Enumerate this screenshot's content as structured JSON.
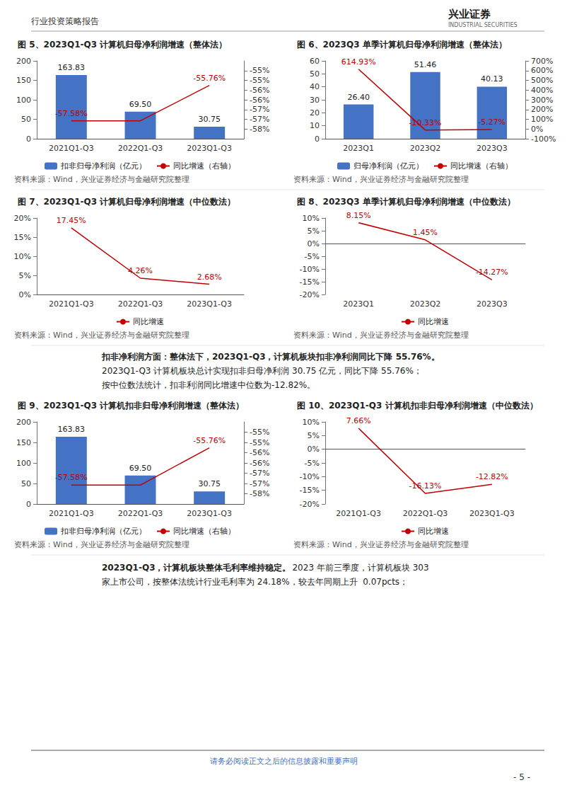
{
  "chart_data": [
    {
      "type": "bar",
      "title": "图 5、2023Q1-Q3 计算机归母净利润增速（整体法）",
      "categories": [
        "2021Q1-Q3",
        "2022Q1-Q3",
        "2023Q1-Q3"
      ],
      "series": [
        {
          "name": "扣非归母净利润（亿元）",
          "type": "bar",
          "color": "#4472C4",
          "values": [
            163.83,
            69.5,
            30.75
          ],
          "value_labels": [
            "163.83",
            "69.50",
            "30.75"
          ]
        },
        {
          "name": "同比增速（右轴）",
          "type": "line",
          "color": "#C00000",
          "axis": "y2",
          "values": [
            -57.58,
            -57.58,
            -55.76
          ],
          "value_labels": [
            "-57.58%",
            null,
            "-55.76%"
          ]
        }
      ],
      "ylim": [
        0,
        200
      ],
      "yticks": [
        0,
        50,
        100,
        150,
        200
      ],
      "y2lim": [
        -58.5,
        -54.5
      ],
      "y2ticks": [
        {
          "value": -58,
          "label": "-58%"
        },
        {
          "value": -57.5,
          "label": "-57%"
        },
        {
          "value": -57,
          "label": "-57%"
        },
        {
          "value": -56.5,
          "label": "-56%"
        },
        {
          "value": -56,
          "label": "-56%"
        },
        {
          "value": -55.5,
          "label": "-55%"
        },
        {
          "value": -55,
          "label": "-55%"
        }
      ],
      "data_labels": true,
      "grid": false,
      "legend": "bottom",
      "annotations": [
        "资料来源：Wind，兴业证券经济与金融研究院整理"
      ]
    },
    {
      "type": "bar",
      "title": "图 6、2023Q3 单季计算机归母净利润增速（整体法）",
      "categories": [
        "2023Q1",
        "2023Q2",
        "2023Q3"
      ],
      "series": [
        {
          "name": "归母净利润（亿元）",
          "type": "bar",
          "color": "#4472C4",
          "values": [
            26.4,
            51.46,
            40.13
          ],
          "value_labels": [
            "26.40",
            "51.46",
            "40.13"
          ]
        },
        {
          "name": "同比增速（右轴）",
          "type": "line",
          "color": "#C00000",
          "axis": "y2",
          "values": [
            614.93,
            -10.33,
            -5.27
          ],
          "value_labels": [
            "614.93%",
            "-10.33%",
            "-5.27%"
          ]
        }
      ],
      "ylim": [
        0,
        60
      ],
      "yticks": [
        0,
        10,
        20,
        30,
        40,
        50,
        60
      ],
      "y2lim": [
        -100,
        700
      ],
      "y2ticks": [
        {
          "value": -100,
          "label": "-100%"
        },
        {
          "value": 0,
          "label": "0%"
        },
        {
          "value": 100,
          "label": "100%"
        },
        {
          "value": 200,
          "label": "200%"
        },
        {
          "value": 300,
          "label": "300%"
        },
        {
          "value": 400,
          "label": "400%"
        },
        {
          "value": 500,
          "label": "500%"
        },
        {
          "value": 600,
          "label": "600%"
        },
        {
          "value": 700,
          "label": "700%"
        }
      ],
      "data_labels": true,
      "grid": false,
      "legend": "bottom",
      "annotations": [
        "资料来源：Wind，兴业证券经济与金融研究院整理"
      ]
    },
    {
      "type": "line",
      "title": "图 7、2023Q1-Q3 计算机归母净利润增速（中位数法）",
      "categories": [
        "2021Q1-Q3",
        "2022Q1-Q3",
        "2023Q1-Q3"
      ],
      "series": [
        {
          "name": "同比增速",
          "type": "line",
          "color": "#C00000",
          "values": [
            17.45,
            4.26,
            2.68
          ],
          "value_labels": [
            "17.45%",
            "4.26%",
            "2.68%"
          ]
        }
      ],
      "ylim": [
        0,
        20
      ],
      "yticks": [
        {
          "value": 0,
          "label": "0%"
        },
        {
          "value": 5,
          "label": "5%"
        },
        {
          "value": 10,
          "label": "10%"
        },
        {
          "value": 15,
          "label": "15%"
        },
        {
          "value": 20,
          "label": "20%"
        }
      ],
      "data_labels": true,
      "grid": false,
      "legend": "bottom",
      "annotations": [
        "资料来源：Wind，兴业证券经济与金融研究院整理"
      ]
    },
    {
      "type": "line",
      "title": "图 8、2023Q3 单季计算机归母净利润增速（中位数法）",
      "categories": [
        "2023Q1",
        "2023Q2",
        "2023Q3"
      ],
      "series": [
        {
          "name": "同比增速",
          "type": "line",
          "color": "#C00000",
          "values": [
            8.15,
            1.45,
            -14.27
          ],
          "value_labels": [
            "8.15%",
            "1.45%",
            "-14.27%"
          ]
        }
      ],
      "ylim": [
        -20,
        10
      ],
      "yticks": [
        {
          "value": -20,
          "label": "-20%"
        },
        {
          "value": -15,
          "label": "-15%"
        },
        {
          "value": -10,
          "label": "-10%"
        },
        {
          "value": -5,
          "label": "-5%"
        },
        {
          "value": 0,
          "label": "0%"
        },
        {
          "value": 5,
          "label": "5%"
        },
        {
          "value": 10,
          "label": "10%"
        }
      ],
      "data_labels": true,
      "grid": false,
      "legend": "bottom",
      "annotations": [
        "资料来源：Wind，兴业证券经济与金融研究院整理"
      ]
    },
    {
      "type": "bar",
      "title": "图 9、2023Q1-Q3 计算机扣非归母净利润增速（整体法）",
      "categories": [
        "2021Q1-Q3",
        "2022Q1-Q3",
        "2023Q1-Q3"
      ],
      "series": [
        {
          "name": "扣非归母净利润（亿元）",
          "type": "bar",
          "color": "#4472C4",
          "values": [
            163.83,
            69.5,
            30.75
          ],
          "value_labels": [
            "163.83",
            "69.50",
            "30.75"
          ]
        },
        {
          "name": "同比增速（右轴）",
          "type": "line",
          "color": "#C00000",
          "axis": "y2",
          "values": [
            -57.58,
            -57.58,
            -55.76
          ],
          "value_labels": [
            "-57.58%",
            null,
            "-55.76%"
          ]
        }
      ],
      "ylim": [
        0,
        200
      ],
      "yticks": [
        0,
        50,
        100,
        150,
        200
      ],
      "y2lim": [
        -58.5,
        -54.5
      ],
      "y2ticks": [
        {
          "value": -58,
          "label": "-58%"
        },
        {
          "value": -57.5,
          "label": "-57%"
        },
        {
          "value": -57,
          "label": "-57%"
        },
        {
          "value": -56.5,
          "label": "-56%"
        },
        {
          "value": -56,
          "label": "-56%"
        },
        {
          "value": -55.5,
          "label": "-55%"
        },
        {
          "value": -55,
          "label": "-55%"
        }
      ],
      "data_labels": true,
      "grid": false,
      "legend": "bottom",
      "annotations": [
        "资料来源：Wind，兴业证券经济与金融研究院整理"
      ]
    },
    {
      "type": "line",
      "title": "图 10、2023Q1-Q3 计算机扣非归母净利润增速（中位数法）",
      "categories": [
        "2021Q1-Q3",
        "2022Q1-Q3",
        "2023Q1-Q3"
      ],
      "series": [
        {
          "name": "同比增速",
          "type": "line",
          "color": "#C00000",
          "values": [
            7.66,
            -16.13,
            -12.82
          ],
          "value_labels": [
            "7.66%",
            "-16.13%",
            "-12.82%"
          ]
        }
      ],
      "ylim": [
        -20,
        10
      ],
      "yticks": [
        {
          "value": -20,
          "label": "-20%"
        },
        {
          "value": -15,
          "label": "-15%"
        },
        {
          "value": -10,
          "label": "-10%"
        },
        {
          "value": -5,
          "label": "-5%"
        },
        {
          "value": 0,
          "label": "0%"
        },
        {
          "value": 5,
          "label": "5%"
        },
        {
          "value": 10,
          "label": "10%"
        }
      ],
      "data_labels": true,
      "grid": false,
      "legend": "bottom",
      "annotations": [
        "资料来源：Wind，兴业证券经济与金融研究院整理"
      ]
    }
  ],
  "annotations": [
    "行业投资策略报告",
    "兴业证券",
    "INDUSTRIAL SECURITIES",
    "扣非净利润方面：整体法下，2023Q1-Q3，计算机板块扣非净利润同比下降 55.76%。",
    "2023Q1-Q3 计算机板块总计实现扣非归母净利润 30.75 亿元，同比下降 55.76%；",
    "按中位数法统计，扣非利润同比增速中位数为-12.82%。",
    "2023Q1-Q3，计算机板块整体毛利率维持稳定。",
    "2023 年前三季度，计算机板块 303",
    "家上市公司，按整体法统计行业毛利率为 24.18%，较去年同期上升  0.07pcts；",
    "请务必阅读正文之后的信息披露和重要声明",
    "- 5 -"
  ]
}
